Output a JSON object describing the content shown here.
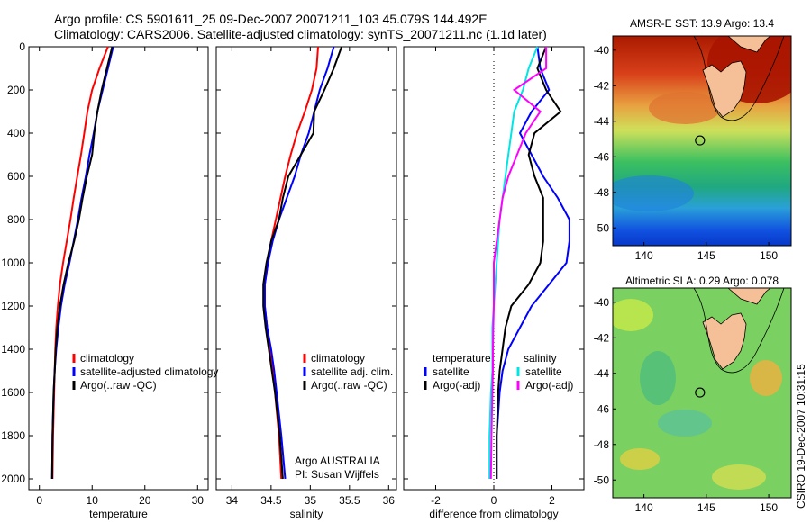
{
  "header": {
    "line1": "Argo profile: CS 5901611_25 09-Dec-2007 20071211_103 45.079S 144.492E",
    "line2": "Climatology: CARS2006. Satellite-adjusted climatology: synTS_20071211.nc (1.1d later)"
  },
  "colors": {
    "climatology": "#ff0000",
    "satellite": "#0000ff",
    "argo": "#000000",
    "cyan": "#00e5e5",
    "magenta": "#ff00ff"
  },
  "chart_data": [
    {
      "type": "line",
      "name": "temperature",
      "xlabel": "temperature",
      "ylabel": "",
      "xlim": [
        -2,
        32
      ],
      "ylim": [
        2050,
        0
      ],
      "xticks": [
        0,
        10,
        20,
        30
      ],
      "yticks": [
        0,
        200,
        400,
        600,
        800,
        1000,
        1200,
        1400,
        1600,
        1800,
        2000
      ],
      "legend": {
        "placement": "lower-right",
        "entries": [
          "climatology",
          "satellite-adjusted climatology",
          "Argo(..raw -QC)"
        ]
      },
      "series": [
        {
          "name": "climatology",
          "color": "#ff0000",
          "depth": [
            0,
            100,
            200,
            300,
            400,
            500,
            600,
            700,
            800,
            900,
            1000,
            1100,
            1200,
            1300,
            1400,
            1500,
            1600,
            1800,
            2000
          ],
          "values": [
            13.0,
            11.4,
            10.0,
            9.1,
            8.5,
            7.9,
            7.2,
            6.5,
            5.9,
            5.2,
            4.5,
            3.9,
            3.5,
            3.2,
            3.0,
            2.9,
            2.8,
            2.6,
            2.5
          ]
        },
        {
          "name": "satellite-adjusted climatology",
          "color": "#0000ff",
          "depth": [
            0,
            100,
            200,
            300,
            400,
            500,
            600,
            700,
            800,
            900,
            1000,
            1100,
            1200,
            1300,
            1400,
            1500,
            1600,
            1800,
            2000
          ],
          "values": [
            14.0,
            13.0,
            12.0,
            11.0,
            10.3,
            9.5,
            8.8,
            8.0,
            7.3,
            6.5,
            5.7,
            4.8,
            4.1,
            3.6,
            3.2,
            2.9,
            2.7,
            2.5,
            2.4
          ]
        },
        {
          "name": "Argo(..raw -QC)",
          "color": "#000000",
          "depth": [
            0,
            100,
            200,
            300,
            400,
            500,
            600,
            700,
            800,
            900,
            1000,
            1100,
            1200,
            1300,
            1400,
            1500,
            1600,
            1800,
            2000
          ],
          "values": [
            13.8,
            12.8,
            11.8,
            11.0,
            10.4,
            10.0,
            9.0,
            8.2,
            7.5,
            6.6,
            5.5,
            4.6,
            3.9,
            3.4,
            3.1,
            2.9,
            2.7,
            2.5,
            2.4
          ]
        }
      ]
    },
    {
      "type": "line",
      "name": "salinity",
      "xlabel": "salinity",
      "ylabel": "",
      "xlim": [
        33.8,
        36.1
      ],
      "ylim": [
        2050,
        0
      ],
      "xticks": [
        34,
        34.5,
        35,
        35.5,
        36
      ],
      "xticklabels": [
        "34",
        "34.5",
        "35",
        "35.5",
        "36"
      ],
      "legend": {
        "placement": "lower-right",
        "entries": [
          "climatology",
          "satellite adj. clim.",
          "Argo(..raw -QC)"
        ]
      },
      "annotations": [
        "Argo AUSTRALIA",
        "PI: Susan Wijffels"
      ],
      "series": [
        {
          "name": "climatology",
          "color": "#ff0000",
          "depth": [
            0,
            100,
            200,
            300,
            400,
            500,
            600,
            700,
            800,
            900,
            1000,
            1100,
            1200,
            1300,
            1400,
            1500,
            1600,
            1800,
            2000
          ],
          "values": [
            35.1,
            35.08,
            35.02,
            34.93,
            34.83,
            34.75,
            34.68,
            34.62,
            34.56,
            34.5,
            34.46,
            34.42,
            34.42,
            34.45,
            34.49,
            34.52,
            34.55,
            34.6,
            34.63
          ]
        },
        {
          "name": "satellite adj. clim.",
          "color": "#0000ff",
          "depth": [
            0,
            100,
            200,
            300,
            400,
            500,
            600,
            700,
            800,
            900,
            1000,
            1100,
            1200,
            1300,
            1400,
            1500,
            1600,
            1800,
            2000
          ],
          "values": [
            35.3,
            35.22,
            35.12,
            35.05,
            34.98,
            34.88,
            34.8,
            34.7,
            34.6,
            34.52,
            34.46,
            34.42,
            34.42,
            34.45,
            34.5,
            34.54,
            34.57,
            34.63,
            34.68
          ]
        },
        {
          "name": "Argo(..raw -QC)",
          "color": "#000000",
          "depth": [
            0,
            100,
            200,
            300,
            400,
            500,
            600,
            700,
            800,
            900,
            1000,
            1100,
            1200,
            1300,
            1400,
            1500,
            1600,
            1800,
            2000
          ],
          "values": [
            35.4,
            35.3,
            35.18,
            35.05,
            35.04,
            34.88,
            34.72,
            34.65,
            34.6,
            34.5,
            34.44,
            34.4,
            34.4,
            34.43,
            34.47,
            34.51,
            34.55,
            34.61,
            34.65
          ]
        }
      ]
    },
    {
      "type": "line",
      "name": "difference",
      "xlabel": "difference from climatology",
      "ylabel": "",
      "xlim": [
        -3.1,
        3.1
      ],
      "ylim": [
        2050,
        0
      ],
      "xticks": [
        -2,
        0,
        2
      ],
      "zero_line": true,
      "legend": {
        "placement": "lower-middle",
        "headers": [
          "temperature",
          "salinity"
        ],
        "entries": [
          "satellite",
          "Argo(-adj)",
          "satellite",
          "Argo(-adj)"
        ]
      },
      "series": [
        {
          "name": "temperature satellite",
          "color": "#0000ff",
          "depth": [
            0,
            100,
            200,
            300,
            400,
            500,
            600,
            700,
            800,
            900,
            1000,
            1100,
            1200,
            1300,
            1400,
            1500,
            1600,
            1800,
            2000
          ],
          "values": [
            1.5,
            1.6,
            1.9,
            1.3,
            0.9,
            1.3,
            1.7,
            2.2,
            2.6,
            2.6,
            2.5,
            1.9,
            1.3,
            0.9,
            0.5,
            0.3,
            0.2,
            0.1,
            0.1
          ]
        },
        {
          "name": "temperature Argo(-adj)",
          "color": "#000000",
          "depth": [
            0,
            100,
            200,
            300,
            400,
            500,
            600,
            700,
            800,
            900,
            1000,
            1100,
            1200,
            1300,
            1400,
            1500,
            1600,
            1800,
            2000
          ],
          "values": [
            1.8,
            1.5,
            1.8,
            2.3,
            1.4,
            1.2,
            1.4,
            1.7,
            1.7,
            1.7,
            1.6,
            1.2,
            0.6,
            0.4,
            0.3,
            0.2,
            0.15,
            0.1,
            0.1
          ]
        },
        {
          "name": "salinity satellite",
          "color": "#00e5e5",
          "depth": [
            0,
            100,
            200,
            300,
            400,
            500,
            600,
            700,
            800,
            900,
            1000,
            1100,
            1200,
            1300,
            1400,
            1500,
            1600,
            1800,
            2000
          ],
          "values": [
            1.5,
            1.2,
            1.0,
            0.7,
            0.6,
            0.5,
            0.4,
            0.3,
            0.2,
            0.15,
            0.1,
            0.05,
            0.0,
            -0.05,
            -0.05,
            -0.05,
            -0.1,
            -0.15,
            -0.15
          ]
        },
        {
          "name": "salinity Argo(-adj)",
          "color": "#ff00ff",
          "depth": [
            0,
            100,
            200,
            300,
            400,
            500,
            600,
            700,
            800,
            900,
            1000,
            1100,
            1200,
            1300,
            1400,
            1500,
            1600,
            1800,
            2000
          ],
          "values": [
            1.8,
            1.8,
            0.7,
            1.6,
            1.1,
            0.8,
            0.5,
            0.3,
            0.2,
            0.1,
            0.0,
            0.0,
            0.0,
            -0.02,
            -0.03,
            -0.03,
            -0.05,
            -0.08,
            -0.1
          ]
        }
      ]
    },
    {
      "type": "heatmap",
      "name": "sst-map",
      "title": "AMSR-E SST: 13.9 Argo: 13.4",
      "xlim": [
        137.5,
        151.8
      ],
      "ylim": [
        -51,
        -39.2
      ],
      "xticks": [
        140,
        145,
        150
      ],
      "yticks": [
        -40,
        -42,
        -44,
        -46,
        -48,
        -50
      ],
      "marker": {
        "lon": 144.492,
        "lat": -45.079
      }
    },
    {
      "type": "heatmap",
      "name": "sla-map",
      "title": "Altimetric SLA: 0.29 Argo: 0.078",
      "xlim": [
        137.5,
        151.8
      ],
      "ylim": [
        -51,
        -39.2
      ],
      "xticks": [
        140,
        145,
        150
      ],
      "yticks": [
        -40,
        -42,
        -44,
        -46,
        -48,
        -50
      ],
      "marker": {
        "lon": 144.492,
        "lat": -45.079
      }
    }
  ],
  "footer": {
    "side_label": "CSIRO 19-Dec-2007 10:31:15"
  }
}
